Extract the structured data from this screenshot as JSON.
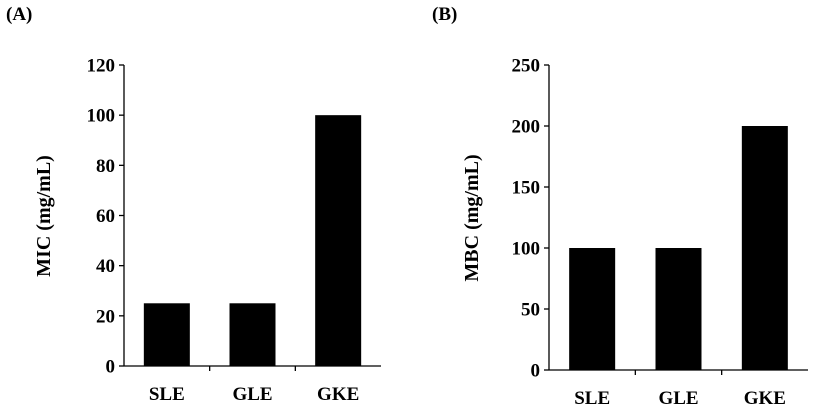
{
  "chart_data": [
    {
      "type": "bar",
      "panel_label": "(A)",
      "categories": [
        "SLE",
        "GLE",
        "GKE"
      ],
      "values": [
        25,
        25,
        100
      ],
      "ylabel": "MIC (mg/mL)",
      "xlabel": "",
      "ylim": [
        0,
        120
      ],
      "yticks": [
        0,
        20,
        40,
        60,
        80,
        100,
        120
      ],
      "color": "#000000",
      "grid": false
    },
    {
      "type": "bar",
      "panel_label": "(B)",
      "categories": [
        "SLE",
        "GLE",
        "GKE"
      ],
      "values": [
        100,
        100,
        200
      ],
      "ylabel": "MBC (mg/mL)",
      "xlabel": "",
      "ylim": [
        0,
        250
      ],
      "yticks": [
        0,
        50,
        100,
        150,
        200,
        250
      ],
      "color": "#000000",
      "grid": false
    }
  ]
}
